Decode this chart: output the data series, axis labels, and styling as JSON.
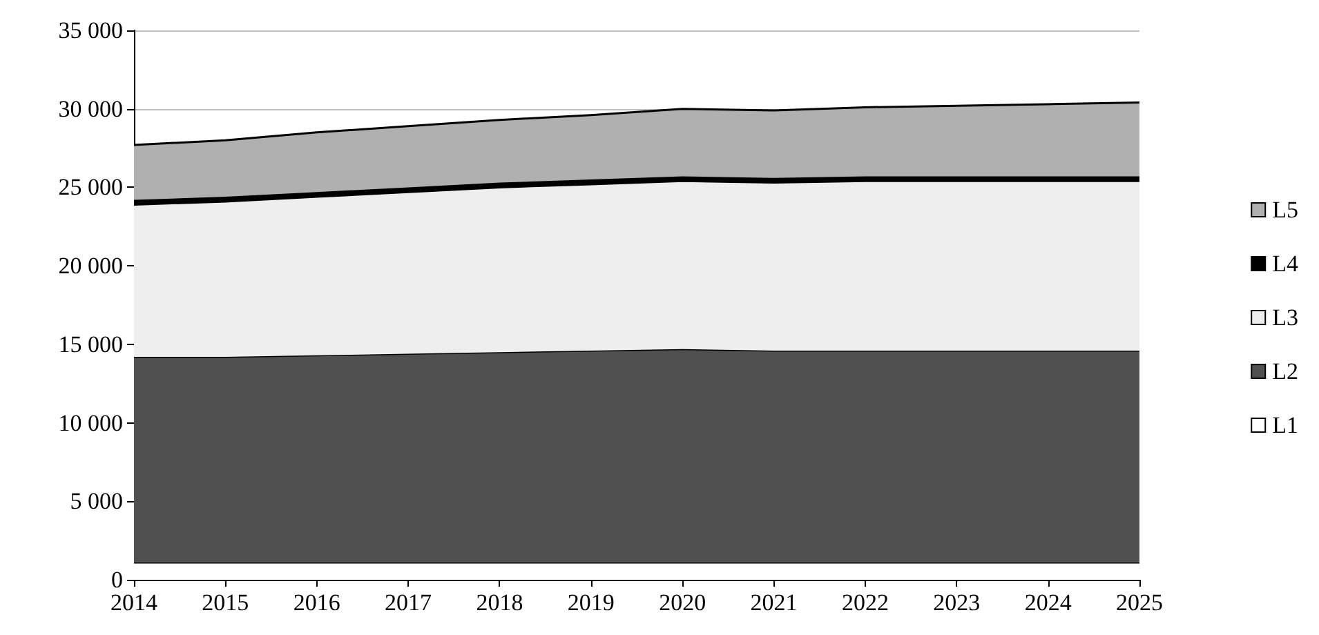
{
  "chart_data": {
    "type": "area",
    "stacked": true,
    "categories": [
      "2014",
      "2015",
      "2016",
      "2017",
      "2018",
      "2019",
      "2020",
      "2021",
      "2022",
      "2023",
      "2024",
      "2025"
    ],
    "series": [
      {
        "name": "L1",
        "color": "#ffffff",
        "values": [
          1100,
          1100,
          1100,
          1100,
          1100,
          1100,
          1100,
          1100,
          1100,
          1100,
          1100,
          1100
        ]
      },
      {
        "name": "L2",
        "color": "#505050",
        "values": [
          13100,
          13100,
          13200,
          13300,
          13400,
          13500,
          13600,
          13500,
          13500,
          13500,
          13500,
          13500
        ]
      },
      {
        "name": "L3",
        "color": "#eeeeee",
        "values": [
          9700,
          9900,
          10100,
          10300,
          10500,
          10600,
          10700,
          10700,
          10800,
          10800,
          10800,
          10800
        ]
      },
      {
        "name": "L4",
        "color": "#000000",
        "values": [
          300,
          300,
          300,
          300,
          300,
          300,
          300,
          300,
          300,
          300,
          300,
          300
        ]
      },
      {
        "name": "L5",
        "color": "#b0b0b0",
        "values": [
          3500,
          3600,
          3800,
          3900,
          4000,
          4100,
          4300,
          4300,
          4400,
          4500,
          4600,
          4700
        ]
      }
    ],
    "ylim": [
      0,
      35000
    ],
    "yticks": [
      0,
      5000,
      10000,
      15000,
      20000,
      25000,
      30000,
      35000
    ],
    "grid": "y",
    "legend": "right",
    "marker": "none"
  }
}
